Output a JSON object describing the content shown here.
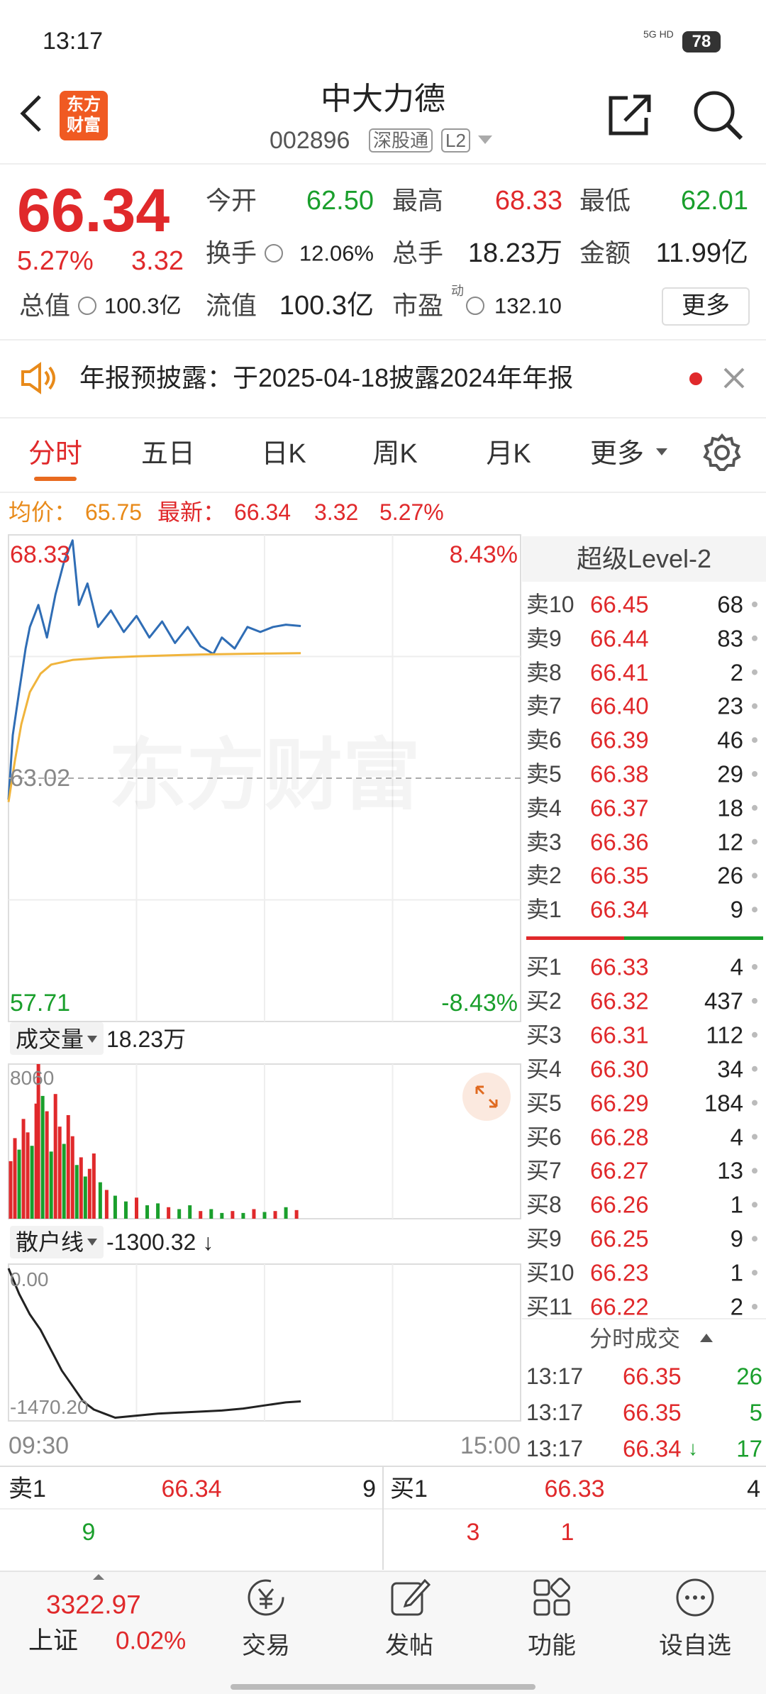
{
  "status_bar": {
    "time": "13:17",
    "network": "5G HD",
    "battery": "78"
  },
  "header": {
    "logo": [
      "东方",
      "财富"
    ],
    "title": "中大力德",
    "code": "002896",
    "tags": [
      "深股通",
      "L2"
    ]
  },
  "quote": {
    "price": "66.34",
    "change_pct": "5.27%",
    "change": "3.32",
    "stats": [
      {
        "label": "今开",
        "value": "62.50"
      },
      {
        "label": "最高",
        "value": "68.33"
      },
      {
        "label": "最低",
        "value": "62.01"
      },
      {
        "label": "换手",
        "value": "12.06%"
      },
      {
        "label": "总手",
        "value": "18.23万"
      },
      {
        "label": "金额",
        "value": "11.99亿"
      },
      {
        "label": "总值",
        "value": "100.3亿"
      },
      {
        "label": "流值",
        "value": "100.3亿"
      },
      {
        "label": "市盈",
        "sup": "动",
        "value": "132.10"
      }
    ],
    "more": "更多"
  },
  "notice": {
    "text": "年报预披露：于2025-04-18披露2024年年报"
  },
  "tabs": [
    "分时",
    "五日",
    "日K",
    "周K",
    "月K",
    "更多"
  ],
  "info": {
    "avg_label": "均价：",
    "avg": "65.75",
    "latest_label": "最新：",
    "latest": "66.34",
    "change": "3.32",
    "pct": "5.27%"
  },
  "chart_data": [
    {
      "type": "line",
      "watermark": "东方财富",
      "xlim": [
        0,
        240
      ],
      "ylim": [
        57.71,
        68.33
      ],
      "yticks": [
        57.71,
        63.02,
        68.33
      ],
      "y2lim": [
        -8.43,
        8.43
      ],
      "y2ticks": [
        {
          "value": -8.43,
          "label": "-8.43%"
        },
        {
          "value": 8.43,
          "label": "8.43%"
        }
      ],
      "series": [
        {
          "color": "#2f6db5",
          "x": [
            0,
            2,
            5,
            8,
            10,
            14,
            18,
            22,
            26,
            30,
            33,
            37,
            42,
            48,
            54,
            60,
            66,
            72,
            78,
            84,
            90,
            96,
            100,
            106,
            112,
            118,
            124,
            130,
            137
          ],
          "values": [
            62.55,
            63.96,
            64.91,
            65.85,
            66.32,
            66.8,
            66.09,
            67.03,
            67.74,
            68.21,
            66.8,
            67.27,
            66.32,
            66.68,
            66.21,
            66.56,
            66.09,
            66.44,
            65.97,
            66.32,
            65.9,
            65.73,
            66.09,
            65.85,
            66.32,
            66.21,
            66.32,
            66.37,
            66.34
          ]
        },
        {
          "color": "#f0b43c",
          "x": [
            0,
            3,
            6,
            10,
            15,
            20,
            30,
            45,
            60,
            90,
            120,
            137
          ],
          "values": [
            62.5,
            63.4,
            64.2,
            64.9,
            65.3,
            65.5,
            65.6,
            65.65,
            65.68,
            65.72,
            65.74,
            65.75
          ]
        }
      ]
    },
    {
      "type": "bar",
      "label": "成交量",
      "total": "18.23万",
      "xlim": [
        0,
        240
      ],
      "ylim": [
        0,
        8060
      ],
      "yticks": [
        8060
      ],
      "x": [
        1,
        3,
        5,
        7,
        9,
        11,
        13,
        14,
        16,
        18,
        20,
        22,
        24,
        26,
        28,
        30,
        32,
        34,
        36,
        38,
        40,
        43,
        46,
        50,
        55,
        60,
        65,
        70,
        75,
        80,
        85,
        90,
        95,
        100,
        105,
        110,
        115,
        120,
        125,
        130,
        135
      ],
      "values": [
        3000,
        4200,
        3600,
        5200,
        4500,
        3800,
        6000,
        8060,
        6400,
        5600,
        3500,
        6500,
        4800,
        3900,
        5400,
        4300,
        2800,
        3200,
        2200,
        2600,
        3400,
        1900,
        1500,
        1200,
        900,
        1100,
        700,
        800,
        600,
        500,
        700,
        400,
        500,
        300,
        400,
        300,
        500,
        350,
        400,
        600,
        450
      ],
      "colors": [
        "#e0292b",
        "#e0292b",
        "#1a9f2c",
        "#e0292b",
        "#e0292b",
        "#1a9f2c",
        "#e0292b",
        "#e0292b",
        "#1a9f2c",
        "#e0292b",
        "#1a9f2c",
        "#e0292b",
        "#e0292b",
        "#1a9f2c",
        "#e0292b",
        "#e0292b",
        "#1a9f2c",
        "#e0292b",
        "#1a9f2c",
        "#e0292b",
        "#e0292b",
        "#1a9f2c",
        "#e0292b",
        "#1a9f2c",
        "#1a9f2c",
        "#e0292b",
        "#1a9f2c",
        "#1a9f2c",
        "#e0292b",
        "#1a9f2c",
        "#1a9f2c",
        "#e0292b",
        "#1a9f2c",
        "#1a9f2c",
        "#e0292b",
        "#1a9f2c",
        "#e0292b",
        "#1a9f2c",
        "#e0292b",
        "#1a9f2c",
        "#e0292b"
      ]
    },
    {
      "type": "line",
      "label": "散户线",
      "current": "-1300.32 ↓",
      "xlim": [
        0,
        240
      ],
      "xticks": [
        {
          "value": 0,
          "label": "09:30"
        },
        {
          "value": 240,
          "label": "15:00"
        }
      ],
      "ylim": [
        -1470.2,
        0
      ],
      "yticks": [
        {
          "value": -1470.2,
          "label": "-1470.20"
        },
        {
          "value": 0,
          "label": "0.00"
        }
      ],
      "series": [
        {
          "color": "#222222",
          "x": [
            0,
            5,
            10,
            15,
            20,
            25,
            30,
            35,
            40,
            45,
            50,
            60,
            70,
            80,
            90,
            100,
            110,
            120,
            130,
            137
          ],
          "values": [
            0,
            -250,
            -450,
            -600,
            -800,
            -1000,
            -1150,
            -1300,
            -1380,
            -1420,
            -1460,
            -1440,
            -1420,
            -1410,
            -1400,
            -1390,
            -1370,
            -1340,
            -1310,
            -1300.32
          ]
        }
      ]
    }
  ],
  "level2": {
    "title": "超级Level-2",
    "asks": [
      {
        "label": "卖10",
        "price": "66.45",
        "volume": "68"
      },
      {
        "label": "卖9",
        "price": "66.44",
        "volume": "83"
      },
      {
        "label": "卖8",
        "price": "66.41",
        "volume": "2"
      },
      {
        "label": "卖7",
        "price": "66.40",
        "volume": "23"
      },
      {
        "label": "卖6",
        "price": "66.39",
        "volume": "46"
      },
      {
        "label": "卖5",
        "price": "66.38",
        "volume": "29"
      },
      {
        "label": "卖4",
        "price": "66.37",
        "volume": "18"
      },
      {
        "label": "卖3",
        "price": "66.36",
        "volume": "12"
      },
      {
        "label": "卖2",
        "price": "66.35",
        "volume": "26"
      },
      {
        "label": "卖1",
        "price": "66.34",
        "volume": "9"
      }
    ],
    "bids": [
      {
        "label": "买1",
        "price": "66.33",
        "volume": "4"
      },
      {
        "label": "买2",
        "price": "66.32",
        "volume": "437"
      },
      {
        "label": "买3",
        "price": "66.31",
        "volume": "112"
      },
      {
        "label": "买4",
        "price": "66.30",
        "volume": "34"
      },
      {
        "label": "买5",
        "price": "66.29",
        "volume": "184"
      },
      {
        "label": "买6",
        "price": "66.28",
        "volume": "4"
      },
      {
        "label": "买7",
        "price": "66.27",
        "volume": "13"
      },
      {
        "label": "买8",
        "price": "66.26",
        "volume": "1"
      },
      {
        "label": "买9",
        "price": "66.25",
        "volume": "9"
      },
      {
        "label": "买10",
        "price": "66.23",
        "volume": "1"
      },
      {
        "label": "买11",
        "price": "66.22",
        "volume": "2"
      }
    ],
    "trades_title": "分时成交",
    "trades": [
      {
        "time": "13:17",
        "price": "66.35",
        "volume": "26"
      },
      {
        "time": "13:17",
        "price": "66.35",
        "volume": "5"
      },
      {
        "time": "13:17",
        "price": "66.34",
        "arrow": "↓",
        "volume": "17"
      }
    ]
  },
  "order_bar": {
    "ask": {
      "label": "卖1",
      "price": "66.34",
      "volume": "9"
    },
    "bid": {
      "label": "买1",
      "price": "66.33",
      "volume": "4"
    },
    "ask_queue": [
      "9"
    ],
    "bid_queue": [
      "3",
      "1"
    ]
  },
  "bottom_nav": {
    "index": {
      "value": "3322.97",
      "name": "上证",
      "change": "0.02%"
    },
    "items": [
      "交易",
      "发帖",
      "功能",
      "设自选"
    ]
  }
}
